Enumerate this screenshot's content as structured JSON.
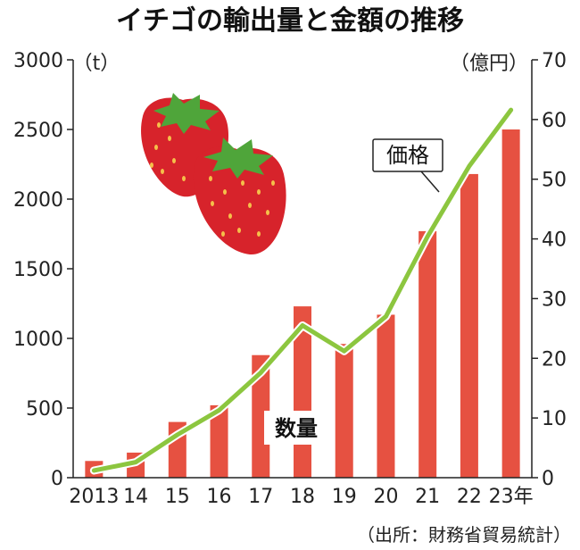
{
  "chart_data": {
    "type": "bar",
    "title": "イチゴの輸出量と金額の推移",
    "categories": [
      "2013",
      "14",
      "15",
      "16",
      "17",
      "18",
      "19",
      "20",
      "21",
      "22",
      "23年"
    ],
    "left_axis": {
      "unit": "（t）",
      "ylim": [
        0,
        3000
      ],
      "ticks": [
        "0",
        "500",
        "1000",
        "1500",
        "2000",
        "2500",
        "3000"
      ]
    },
    "right_axis": {
      "unit": "（億円）",
      "ylim": [
        0,
        70
      ],
      "ticks": [
        "0",
        "10",
        "20",
        "30",
        "40",
        "50",
        "60",
        "70"
      ]
    },
    "series": [
      {
        "name": "数量",
        "type": "bar",
        "axis": "left",
        "values": [
          120,
          180,
          400,
          520,
          880,
          1230,
          960,
          1170,
          1770,
          2180,
          2500
        ]
      },
      {
        "name": "価格",
        "type": "line",
        "axis": "right",
        "values": [
          1.2,
          2.6,
          7.2,
          11.3,
          17.6,
          25.5,
          21.2,
          27.0,
          40.4,
          52.2,
          61.6
        ]
      }
    ],
    "source": "（出所：財務省貿易統計）",
    "colors": {
      "bar": "#e65141",
      "line": "#8cc63f",
      "axis": "#222222"
    }
  }
}
